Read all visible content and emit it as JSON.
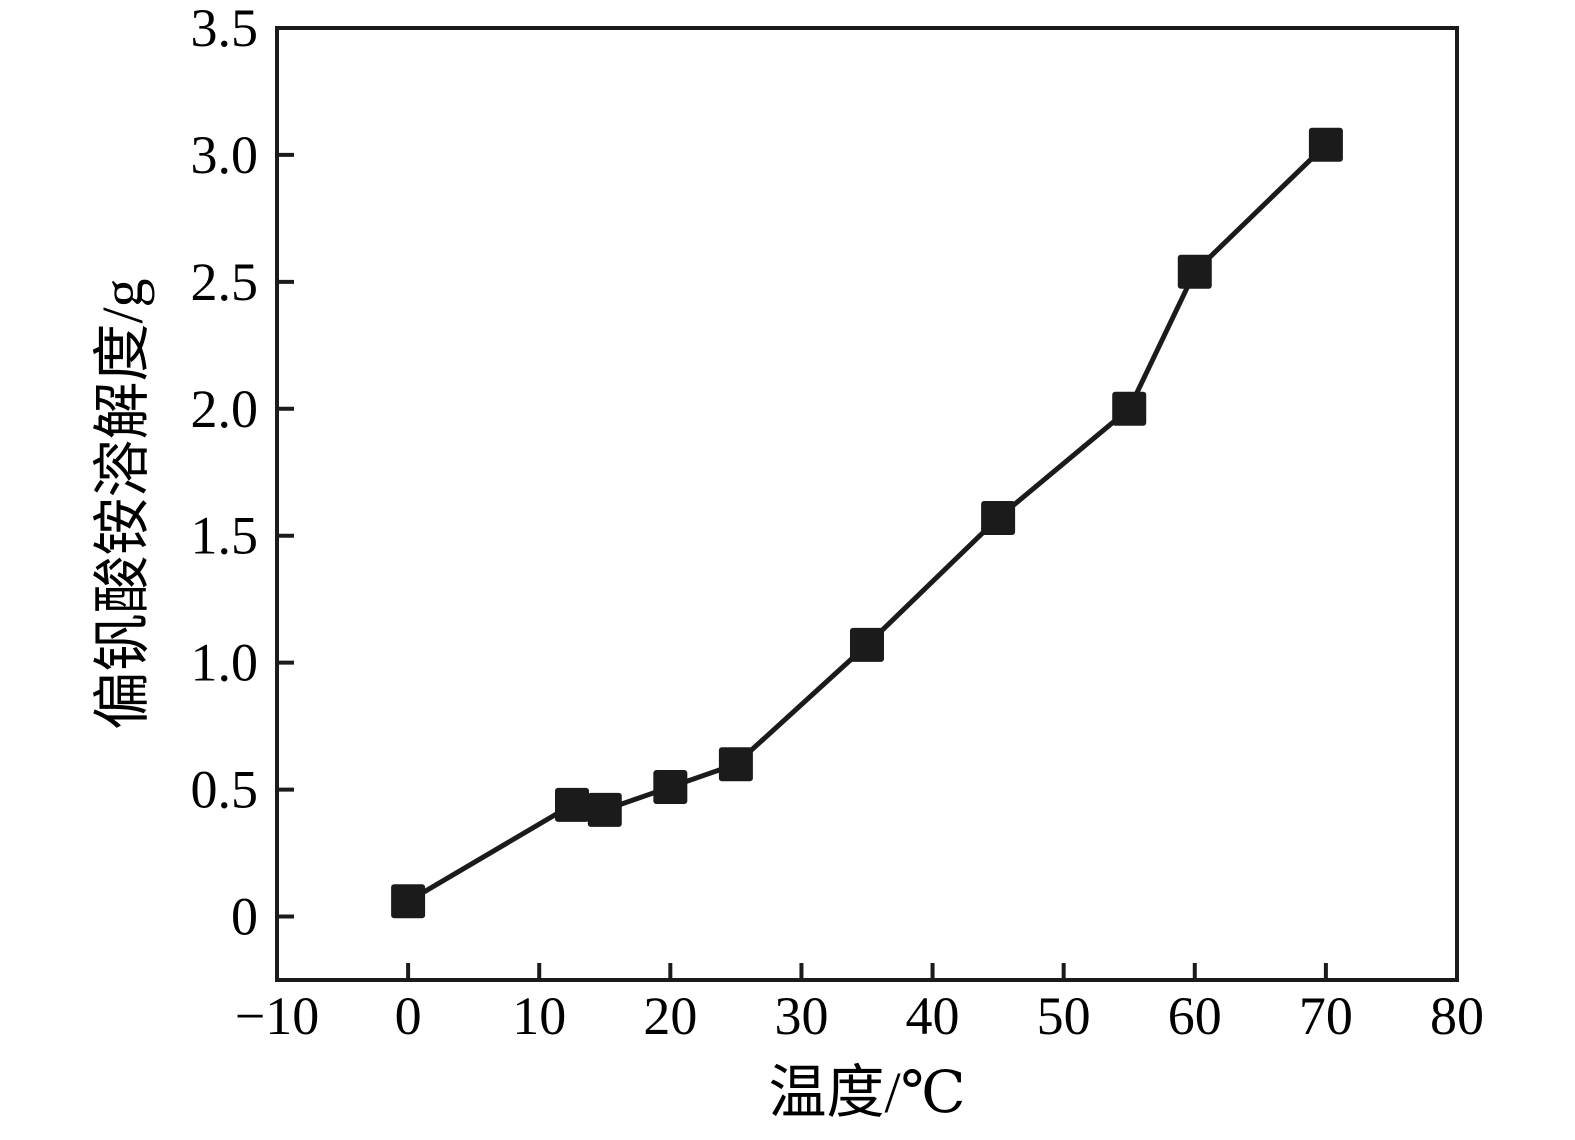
{
  "chart_data": {
    "type": "line",
    "title": "",
    "xlabel": "温度/℃",
    "ylabel": "偏钒酸铵溶解度/g",
    "x": [
      0,
      12.5,
      15,
      20,
      25,
      35,
      45,
      55,
      60,
      70
    ],
    "y": [
      0.06,
      0.44,
      0.42,
      0.51,
      0.6,
      1.07,
      1.57,
      2.0,
      2.54,
      3.04
    ],
    "series_name": "偏钒酸铵溶解度",
    "xlim": [
      -10,
      80
    ],
    "ylim": [
      -0.25,
      3.5
    ],
    "xticks": [
      -10,
      0,
      10,
      20,
      30,
      40,
      50,
      60,
      70,
      80
    ],
    "xtick_labels": [
      "−10",
      "0",
      "10",
      "20",
      "30",
      "40",
      "50",
      "60",
      "70",
      "80"
    ],
    "yticks": [
      0,
      0.5,
      1.0,
      1.5,
      2.0,
      2.5,
      3.0,
      3.5
    ],
    "ytick_labels": [
      "0",
      "0.5",
      "1.0",
      "1.5",
      "2.0",
      "2.5",
      "3.0",
      "3.5"
    ],
    "marker": "square",
    "marker_color": "#1b1b1b",
    "line_color": "#1b1b1b",
    "grid": false,
    "legend": null,
    "background_color": "#ffffff"
  }
}
